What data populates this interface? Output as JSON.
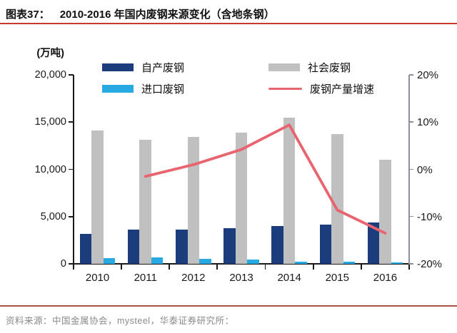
{
  "header": {
    "figure_label": "图表37：",
    "title": "2010-2016 年国内废钢来源变化（含地条钢）"
  },
  "chart_data": {
    "type": "bar",
    "subtype": "grouped-bar-with-line",
    "categories": [
      "2010",
      "2011",
      "2012",
      "2013",
      "2014",
      "2015",
      "2016"
    ],
    "bar_series": [
      {
        "id": "self-produced-scrap",
        "name": "自产废钢",
        "color": "#1b3d7b",
        "values": [
          3200,
          3650,
          3650,
          3800,
          4000,
          4150,
          4400
        ]
      },
      {
        "id": "social-scrap",
        "name": "社会废钢",
        "color": "#c0c0c0",
        "values": [
          14100,
          13100,
          13400,
          13900,
          15500,
          13700,
          11000
        ]
      },
      {
        "id": "imported-scrap",
        "name": "进口废钢",
        "color": "#29a9e1",
        "values": [
          600,
          700,
          500,
          450,
          250,
          200,
          150
        ]
      }
    ],
    "line_series": {
      "id": "scrap-output-growth",
      "name": "废钢产量增速",
      "color": "#e8646e",
      "values": [
        null,
        -1.5,
        1.0,
        4.2,
        9.4,
        -8.6,
        -13.5
      ]
    },
    "left_axis": {
      "unit_label": "(万吨)",
      "min": 0,
      "max": 20000,
      "tick_labels": [
        "0",
        "5,000",
        "10,000",
        "15,000",
        "20,000"
      ]
    },
    "right_axis": {
      "min": -20,
      "max": 20,
      "tick_labels": [
        "-20%",
        "-10%",
        "0%",
        "10%",
        "20%"
      ]
    },
    "legend": [
      {
        "label": "自产废钢",
        "swatch": "rect",
        "color": "#1b3d7b",
        "col": 0,
        "row": 0
      },
      {
        "label": "进口废钢",
        "swatch": "rect",
        "color": "#29a9e1",
        "col": 0,
        "row": 1
      },
      {
        "label": "社会废钢",
        "swatch": "rect",
        "color": "#c0c0c0",
        "col": 1,
        "row": 0
      },
      {
        "label": "废钢产量增速",
        "swatch": "line",
        "color": "#e8646e",
        "col": 1,
        "row": 1
      }
    ],
    "grid": false,
    "legend_position": "top"
  },
  "footer": {
    "source": "资料来源：中国金属协会，mysteel，华泰证券研究所："
  },
  "colors": {
    "title_rule": "#c43b2d",
    "footer_rule": "#a8504a",
    "axis": "#1a1a1a",
    "right_axis": "#8a8f99"
  }
}
